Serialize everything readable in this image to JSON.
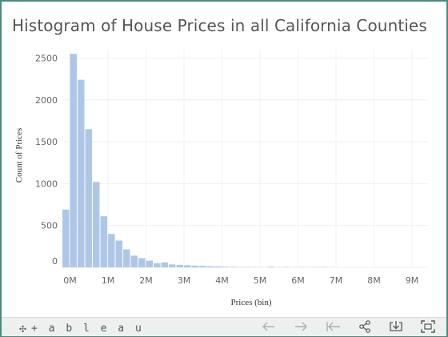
{
  "title": "Histogram of House Prices in all California Counties",
  "footer": {
    "brand_text": "+ a b l e a u",
    "brand_icon": "tableau-logo-icon",
    "buttons": [
      {
        "name": "undo-button",
        "icon": "arrow-left-icon",
        "enabled": false
      },
      {
        "name": "redo-button",
        "icon": "arrow-right-icon",
        "enabled": false
      },
      {
        "name": "revert-button",
        "icon": "revert-icon",
        "enabled": false
      },
      {
        "name": "share-button",
        "icon": "share-icon",
        "enabled": true
      },
      {
        "name": "download-button",
        "icon": "download-icon",
        "enabled": true
      },
      {
        "name": "fullscreen-button",
        "icon": "fullscreen-icon",
        "enabled": true
      }
    ]
  },
  "chart_data": {
    "type": "bar",
    "title": "Histogram of House Prices in all California Counties",
    "xlabel": "Prices (bin)",
    "ylabel": "Count of Prices",
    "bin_width": 0.2,
    "bin_width_unit": "M",
    "x_start": -0.2,
    "xlim": [
      -0.2,
      9.4
    ],
    "ylim": [
      0,
      2600
    ],
    "xticks": [
      "0M",
      "1M",
      "2M",
      "3M",
      "4M",
      "5M",
      "6M",
      "7M",
      "8M",
      "9M"
    ],
    "xtick_values": [
      0,
      1,
      2,
      3,
      4,
      5,
      6,
      7,
      8,
      9
    ],
    "yticks": [
      "0",
      "500",
      "1000",
      "1500",
      "2000",
      "2500"
    ],
    "ytick_values": [
      0,
      500,
      1000,
      1500,
      2000,
      2500
    ],
    "values": [
      690,
      2550,
      2240,
      1650,
      1020,
      610,
      400,
      320,
      215,
      140,
      110,
      80,
      50,
      60,
      35,
      30,
      25,
      20,
      18,
      14,
      12,
      8,
      7,
      5,
      4,
      3,
      2,
      8,
      2,
      5,
      2,
      3,
      2,
      3,
      5,
      2
    ],
    "bar_color": "#aec7e8",
    "grid": true
  }
}
